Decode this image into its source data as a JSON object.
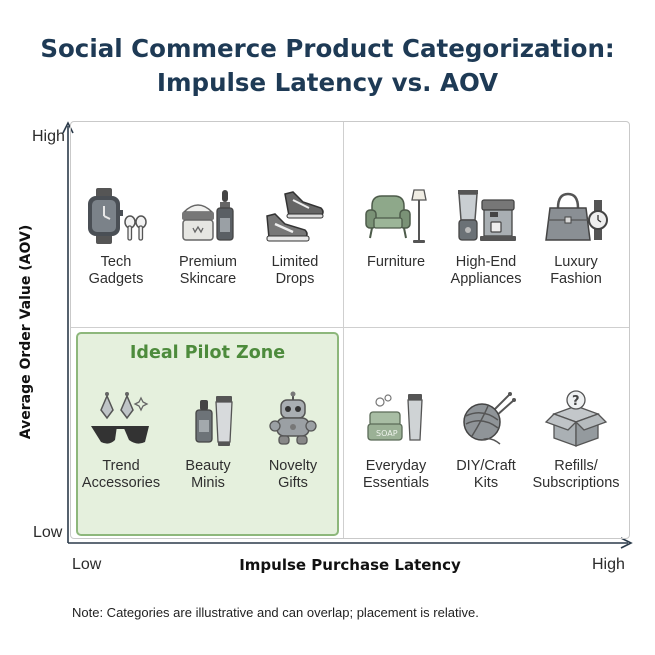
{
  "title": "Social Commerce Product Categorization:\nImpulse Latency vs. AOV",
  "axes": {
    "x_label": "Impulse Purchase Latency",
    "y_label": "Average Order Value (AOV)",
    "x_low": "Low",
    "x_high": "High",
    "y_low": "Low",
    "y_high": "High"
  },
  "pilot_zone": {
    "label": "Ideal Pilot Zone",
    "color": "#4d8b3c",
    "fill": "#e5f0dd"
  },
  "quadrants": {
    "top_left": [
      {
        "label": "Tech\nGadgets",
        "icon": "smartwatch-earbuds-icon"
      },
      {
        "label": "Premium\nSkincare",
        "icon": "skincare-jar-dropper-icon"
      },
      {
        "label": "Limited\nDrops",
        "icon": "sneakers-icon"
      }
    ],
    "top_right": [
      {
        "label": "Furniture",
        "icon": "armchair-lamp-icon"
      },
      {
        "label": "High-End\nAppliances",
        "icon": "blender-espresso-icon"
      },
      {
        "label": "Luxury\nFashion",
        "icon": "handbag-watch-icon"
      }
    ],
    "bottom_left": [
      {
        "label": "Trend\nAccessories",
        "icon": "earrings-sunglasses-icon"
      },
      {
        "label": "Beauty\nMinis",
        "icon": "mini-bottles-icon"
      },
      {
        "label": "Novelty\nGifts",
        "icon": "robot-toy-icon"
      }
    ],
    "bottom_right": [
      {
        "label": "Everyday\nEssentials",
        "icon": "soap-tube-icon"
      },
      {
        "label": "DIY/Craft\nKits",
        "icon": "yarn-needles-icon"
      },
      {
        "label": "Refills/\nSubscriptions",
        "icon": "mystery-box-icon"
      }
    ]
  },
  "note": "Note: Categories are illustrative and can overlap; placement is relative."
}
